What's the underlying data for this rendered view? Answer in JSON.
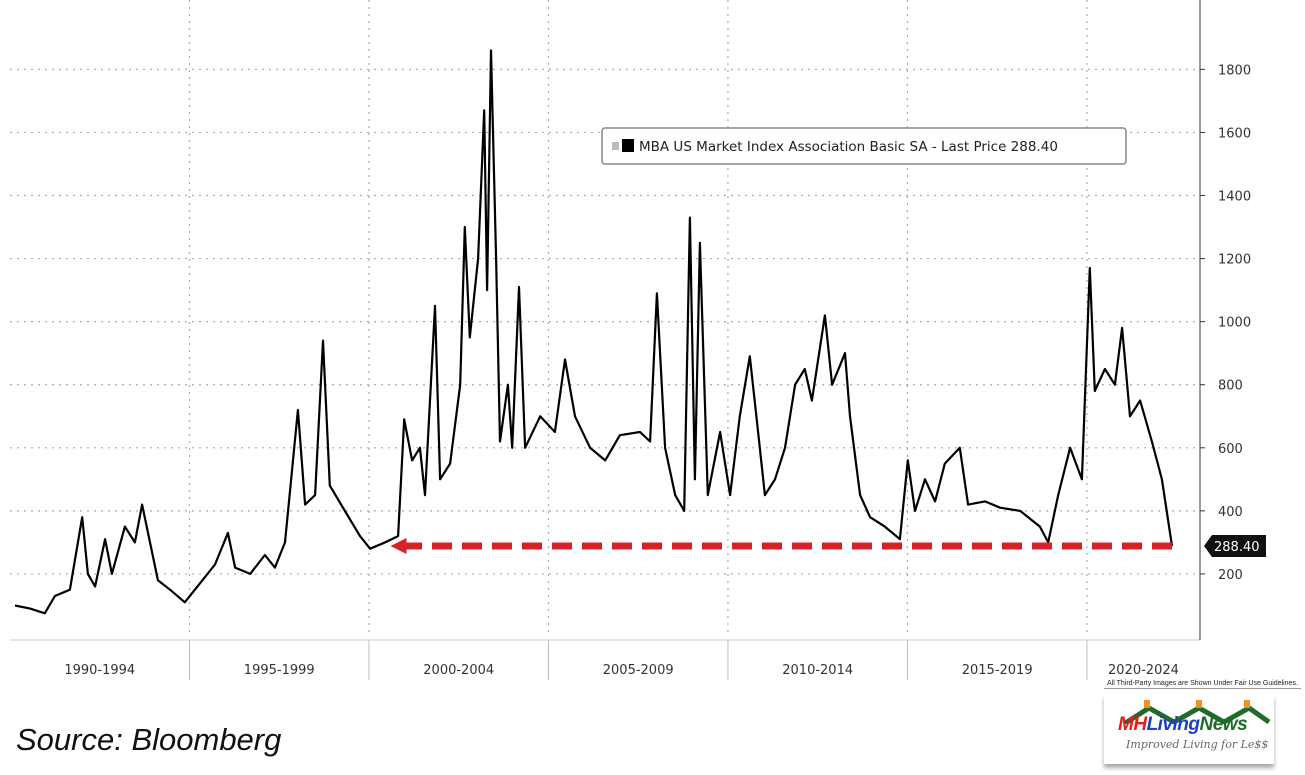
{
  "chart_data": {
    "type": "line",
    "title": "",
    "legend": {
      "label": "MBA US Market Index Association Basic SA - Last Price 288.40",
      "placement": "top-right"
    },
    "last_price_label": "288.40",
    "last_price": 288.4,
    "xlim": [
      1990,
      2023.15
    ],
    "ylim": [
      0,
      2020
    ],
    "y_ticks": [
      200,
      400,
      600,
      800,
      1000,
      1200,
      1400,
      1600,
      1800
    ],
    "y_axis_side": "right",
    "grid": true,
    "x_periods": [
      {
        "label": "1990-1994",
        "start": 1990,
        "end": 1995
      },
      {
        "label": "1995-1999",
        "start": 1995,
        "end": 2000
      },
      {
        "label": "2000-2004",
        "start": 2000,
        "end": 2005
      },
      {
        "label": "2005-2009",
        "start": 2005,
        "end": 2010
      },
      {
        "label": "2010-2014",
        "start": 2010,
        "end": 2015
      },
      {
        "label": "2015-2019",
        "start": 2015,
        "end": 2020
      },
      {
        "label": "2020-2024",
        "start": 2020,
        "end": 2023.15
      }
    ],
    "series": [
      {
        "color": "#000000",
        "x": [
          1990.14,
          1990.56,
          1990.97,
          1991.25,
          1991.67,
          1992.01,
          1992.17,
          1992.37,
          1992.65,
          1992.84,
          1993.2,
          1993.48,
          1993.68,
          1993.9,
          1994.12,
          1994.46,
          1994.87,
          1995.29,
          1995.71,
          1996.07,
          1996.27,
          1996.69,
          1997.1,
          1997.38,
          1997.66,
          1998.02,
          1998.22,
          1998.5,
          1998.72,
          1998.91,
          1999.33,
          1999.75,
          2000.03,
          2000.45,
          2000.81,
          2000.98,
          2001.2,
          2001.42,
          2001.56,
          2001.84,
          2001.98,
          2002.26,
          2002.54,
          2002.67,
          2002.81,
          2003.04,
          2003.21,
          2003.29,
          2003.4,
          2003.54,
          2003.65,
          2003.87,
          2003.99,
          2004.18,
          2004.35,
          2004.77,
          2005.18,
          2005.46,
          2005.74,
          2006.16,
          2006.58,
          2006.99,
          2007.55,
          2007.83,
          2008.02,
          2008.25,
          2008.53,
          2008.78,
          2008.94,
          2009.08,
          2009.22,
          2009.44,
          2009.78,
          2010.06,
          2010.33,
          2010.61,
          2010.84,
          2011.03,
          2011.31,
          2011.59,
          2011.87,
          2012.14,
          2012.34,
          2012.7,
          2012.9,
          2013.26,
          2013.4,
          2013.68,
          2013.96,
          2014.37,
          2014.79,
          2015.01,
          2015.21,
          2015.49,
          2015.77,
          2016.04,
          2016.46,
          2016.69,
          2017.16,
          2017.58,
          2018.14,
          2018.69,
          2018.92,
          2019.2,
          2019.53,
          2019.86,
          2020.08,
          2020.22,
          2020.5,
          2020.78,
          2020.98,
          2021.2,
          2021.48,
          2021.81,
          2022.09,
          2022.37
        ],
        "y": [
          100,
          90,
          75,
          130,
          150,
          380,
          200,
          160,
          310,
          200,
          350,
          300,
          420,
          300,
          180,
          150,
          110,
          170,
          230,
          330,
          220,
          200,
          260,
          220,
          300,
          720,
          420,
          450,
          940,
          480,
          400,
          320,
          280,
          300,
          320,
          690,
          560,
          600,
          450,
          1050,
          500,
          550,
          800,
          1300,
          950,
          1200,
          1670,
          1100,
          1860,
          1200,
          620,
          800,
          600,
          1110,
          600,
          700,
          650,
          880,
          700,
          600,
          560,
          640,
          650,
          620,
          1090,
          600,
          450,
          400,
          1330,
          500,
          1250,
          450,
          650,
          450,
          700,
          890,
          650,
          450,
          500,
          600,
          800,
          850,
          750,
          1020,
          800,
          900,
          700,
          450,
          380,
          350,
          310,
          560,
          400,
          500,
          430,
          550,
          600,
          420,
          430,
          410,
          400,
          350,
          300,
          450,
          600,
          500,
          1170,
          780,
          850,
          800,
          980,
          700,
          750,
          620,
          500,
          288.4
        ]
      }
    ],
    "annotations": [
      {
        "type": "dashed-arrow",
        "color": "#d9212c",
        "y": 288.4,
        "from_x": 2022.37,
        "to_x": 2000.6
      }
    ]
  },
  "source": "Source: Bloomberg",
  "fair_use": "All Third-Party Images are Shown Under Fair Use Guidelines.",
  "logo": {
    "text_mh": "MH",
    "text_living": "Living",
    "text_news": "News",
    "tagline": "Improved Living for Le$$"
  }
}
